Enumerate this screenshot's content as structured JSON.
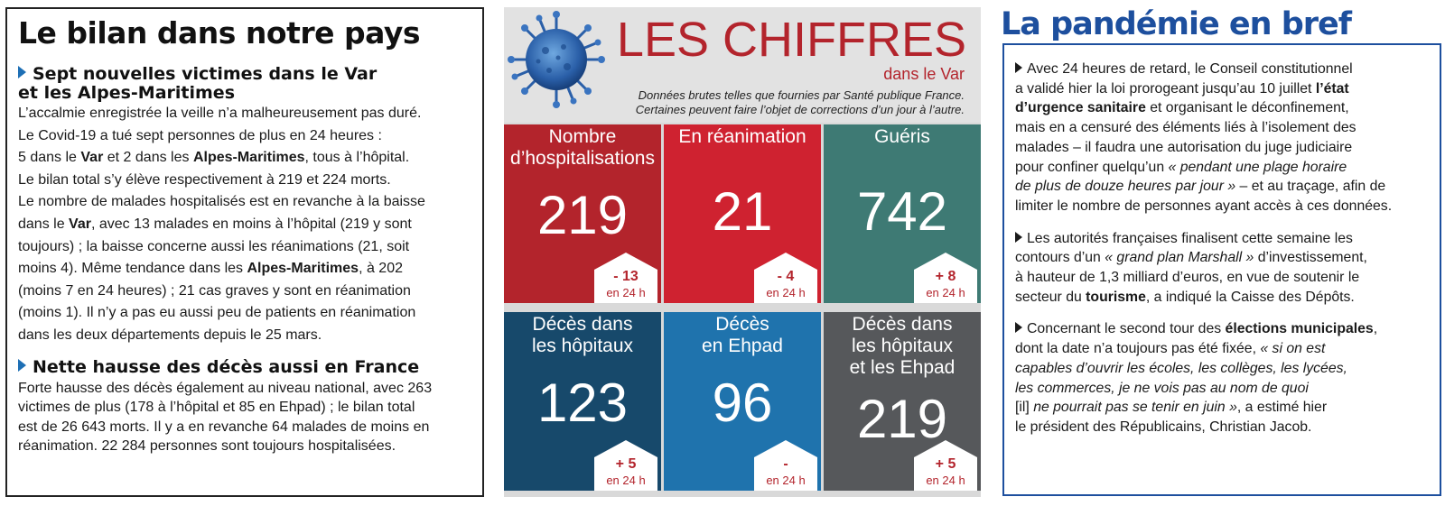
{
  "left": {
    "title": "Le bilan dans notre pays",
    "section1": {
      "heading_line1": "Sept nouvelles victimes dans le Var",
      "heading_line2": "et les Alpes-Maritimes",
      "p1": "L’accalmie enregistrée la veille n’a malheureusement pas duré.",
      "p2": "Le Covid-19 a tué sept personnes de plus en 24 heures :",
      "p3a": "5 dans le ",
      "p3b": "Var",
      "p3c": " et 2 dans les ",
      "p3d": "Alpes-Maritimes",
      "p3e": ", tous à l’hôpital.",
      "p4": "Le bilan total s’y élève respectivement à 219 et 224 morts.",
      "p5": "Le nombre de malades hospitalisés est en revanche à la baisse",
      "p6a": "dans le ",
      "p6b": "Var",
      "p6c": ", avec 13 malades en moins à l’hôpital (219 y sont",
      "p7": "toujours) ; la baisse concerne aussi les réanimations (21, soit",
      "p8a": "moins 4). Même tendance dans les ",
      "p8b": "Alpes-Maritimes",
      "p8c": ", à 202",
      "p9": "(moins 7 en 24 heures) ; 21 cas graves y sont en réanimation",
      "p10": "(moins 1).  Il n’y a pas eu aussi peu de patients en réanimation",
      "p11": "dans les deux départements depuis le 25 mars."
    },
    "section2": {
      "heading": "Nette hausse des décès aussi en France",
      "l1": "Forte hausse des décès également au niveau national, avec 263",
      "l2": "victimes de plus (178 à l’hôpital et 85 en Ehpad) ; le bilan total",
      "l3": "est de 26 643 morts. Il y a en revanche 64 malades de moins en",
      "l4": "réanimation. 22 284 personnes sont toujours hospitalisées."
    }
  },
  "infographic": {
    "title": "LES CHIFFRES",
    "subtitle": "dans le Var",
    "note_line1": "Données brutes telles que fournies par Santé publique France.",
    "note_line2": "Certaines peuvent faire l’objet de corrections d’un jour à l’autre.",
    "tiles": [
      {
        "label_line1": "Nombre",
        "label_line2": "d’hospitalisations",
        "label_line3": "",
        "value": "219",
        "delta": "- 13",
        "unit": "en 24 h",
        "color": "#b3242c"
      },
      {
        "label_line1": "En réanimation",
        "label_line2": "",
        "label_line3": "",
        "value": "21",
        "delta": "- 4",
        "unit": "en 24 h",
        "color": "#cf2230"
      },
      {
        "label_line1": "Guéris",
        "label_line2": "",
        "label_line3": "",
        "value": "742",
        "delta": "+ 8",
        "unit": "en 24 h",
        "color": "#3e7a74"
      },
      {
        "label_line1": "Décès dans",
        "label_line2": "les hôpitaux",
        "label_line3": "",
        "value": "123",
        "delta": "+ 5",
        "unit": "en 24 h",
        "color": "#17496b"
      },
      {
        "label_line1": "Décès",
        "label_line2": "en Ehpad",
        "label_line3": "",
        "value": "96",
        "delta": "-",
        "unit": "en 24 h",
        "color": "#1f73ad"
      },
      {
        "label_line1": "Décès dans",
        "label_line2": "les hôpitaux",
        "label_line3": "et les Ehpad",
        "value": "219",
        "delta": "+ 5",
        "unit": "en 24 h",
        "color": "#56585b"
      }
    ]
  },
  "right": {
    "title": "La pandémie en bref",
    "b1_1": "Avec 24 heures de retard, le Conseil constitutionnel",
    "b1_2a": "a validé hier la loi prorogeant jusqu’au 10 juillet ",
    "b1_2b": "l’état",
    "b1_3a": "d’urgence sanitaire",
    "b1_3b": " et organisant le déconfinement,",
    "b1_4": "mais en a censuré des éléments liés à l’isolement des",
    "b1_5": "malades – il faudra une autorisation du juge judiciaire",
    "b1_6a": "pour confiner quelqu’un ",
    "b1_6b": "« pendant une plage horaire",
    "b1_7a": "de plus de douze heures par jour »",
    "b1_7b": " – et au traçage, afin de",
    "b1_8": "limiter le nombre de personnes ayant accès à ces données.",
    "b2_1": "Les autorités françaises finalisent cette semaine les",
    "b2_2a": "contours d’un ",
    "b2_2b": "« grand plan Marshall »",
    "b2_2c": " d’investissement,",
    "b2_3": "à hauteur de 1,3 milliard d’euros, en vue de soutenir le",
    "b2_4a": "secteur du ",
    "b2_4b": "tourisme",
    "b2_4c": ", a indiqué la Caisse des Dépôts.",
    "b3_1a": "Concernant le second tour des ",
    "b3_1b": "élections municipales",
    "b3_1c": ",",
    "b3_2a": "dont la date n’a toujours pas été fixée, ",
    "b3_2b": "« si on est",
    "b3_3": "capables d’ouvrir les écoles, les collèges, les lycées,",
    "b3_4": "les commerces, je ne vois pas au nom de quoi",
    "b3_5a": "[il] ",
    "b3_5b": "ne pourrait pas se tenir en juin »",
    "b3_5c": ", a estimé hier",
    "b3_6": "le président des Républicains, Christian Jacob."
  },
  "colors": {
    "accent_red": "#b3242c",
    "accent_blue": "#1d4f9e",
    "bullet_blue": "#1d6fb5"
  },
  "icons": [
    "virus-illustration-icon",
    "triangle-bullet-icon"
  ]
}
